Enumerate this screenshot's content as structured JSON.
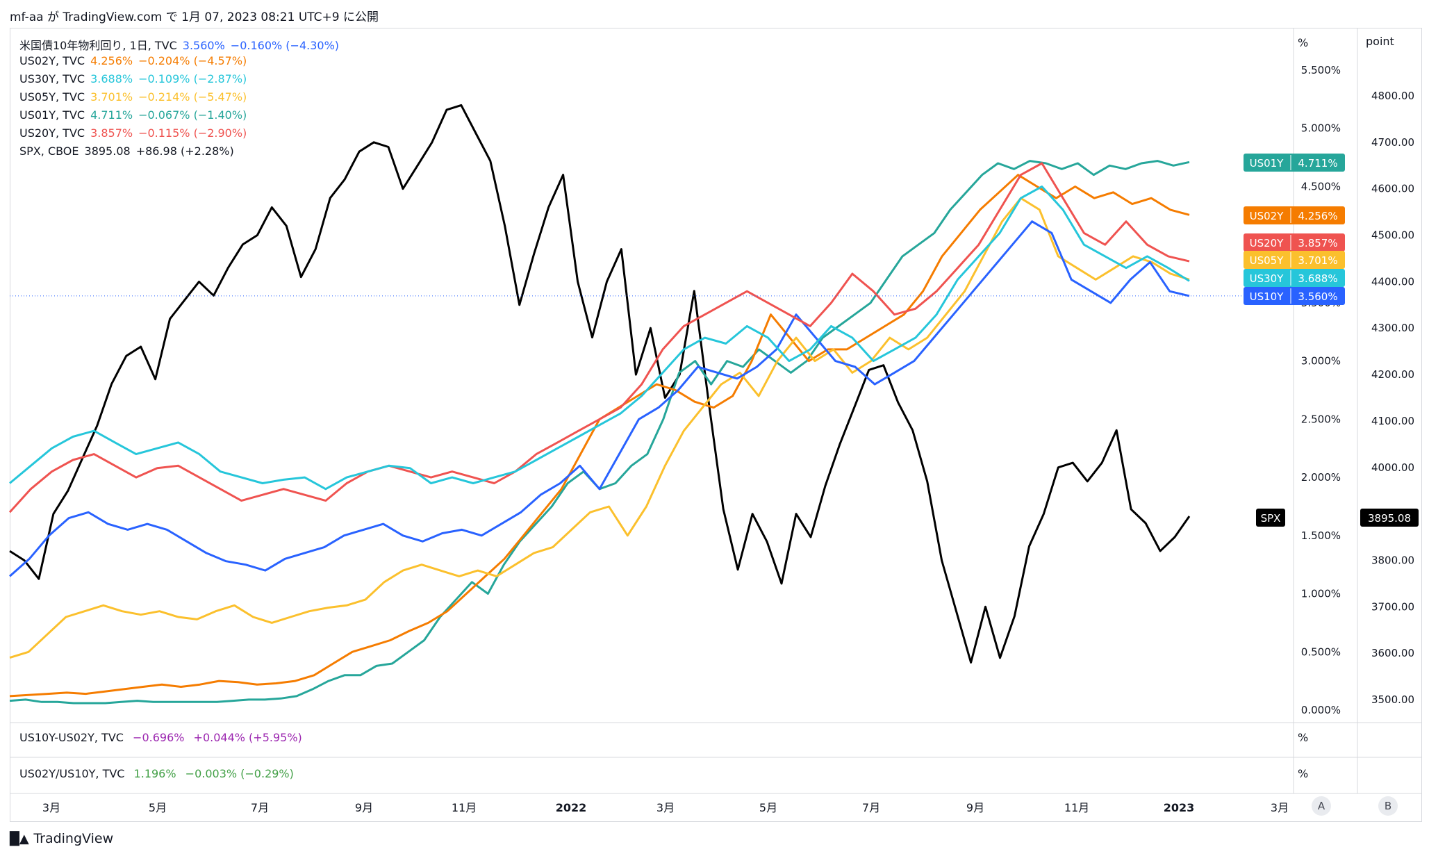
{
  "header": {
    "author": "mf-aa",
    "text_ga": "が",
    "site": "TradingView.com",
    "text_de": "で",
    "datetime": "1月 07, 2023 08:21 UTC+9",
    "text_ni": "に公開"
  },
  "legend": [
    {
      "symbol": "米国債10年物利回り, 1日, TVC",
      "value": "3.560%",
      "change": "−0.160% (−4.30%)",
      "color": "#2962ff"
    },
    {
      "symbol": "US02Y, TVC",
      "value": "4.256%",
      "change": "−0.204% (−4.57%)",
      "color": "#f57c00"
    },
    {
      "symbol": "US30Y, TVC",
      "value": "3.688%",
      "change": "−0.109% (−2.87%)",
      "color": "#26c6da"
    },
    {
      "symbol": "US05Y, TVC",
      "value": "3.701%",
      "change": "−0.214% (−5.47%)",
      "color": "#fbc02d"
    },
    {
      "symbol": "US01Y, TVC",
      "value": "4.711%",
      "change": "−0.067% (−1.40%)",
      "color": "#26a69a"
    },
    {
      "symbol": "US20Y, TVC",
      "value": "3.857%",
      "change": "−0.115% (−2.90%)",
      "color": "#ef5350"
    },
    {
      "symbol": "SPX, CBOE",
      "value": "3895.08",
      "change": "+86.98 (+2.28%)",
      "color": "#131722"
    }
  ],
  "pane2": {
    "symbol": "US10Y-US02Y, TVC",
    "value": "−0.696%",
    "change": "+0.044% (+5.95%)",
    "color": "#9c27b0",
    "unit": "%"
  },
  "pane3": {
    "symbol": "US02Y/US10Y, TVC",
    "value": "1.196%",
    "change": "−0.003% (−0.29%)",
    "color": "#43a047",
    "unit": "%"
  },
  "axis_units": {
    "left": "%",
    "right": "point"
  },
  "buttons": {
    "a": "A",
    "b": "B"
  },
  "footer": {
    "brand": "TradingView"
  },
  "chart_data": {
    "type": "line",
    "x_ticks": [
      "3月",
      "5月",
      "7月",
      "9月",
      "11月",
      "2022",
      "3月",
      "5月",
      "7月",
      "9月",
      "11月",
      "2023",
      "3月"
    ],
    "y_left_ticks": [
      "0.000%",
      "0.500%",
      "1.000%",
      "1.500%",
      "2.000%",
      "2.500%",
      "3.000%",
      "3.500%",
      "4.000%",
      "4.500%",
      "5.000%",
      "5.500%"
    ],
    "y_right_ticks": [
      "3500.00",
      "3600.00",
      "3700.00",
      "3800.00",
      "3900.00",
      "4000.00",
      "4100.00",
      "4200.00",
      "4300.00",
      "4400.00",
      "4500.00",
      "4600.00",
      "4700.00",
      "4800.00"
    ],
    "y_left_range": [
      0,
      5.5
    ],
    "y_right_range": [
      3500,
      4800
    ],
    "series": [
      {
        "name": "SPX",
        "color": "#000000",
        "axis": "right",
        "values": [
          3820,
          3800,
          3760,
          3900,
          3950,
          4020,
          4090,
          4180,
          4240,
          4260,
          4190,
          4320,
          4360,
          4400,
          4370,
          4430,
          4480,
          4500,
          4560,
          4520,
          4410,
          4470,
          4580,
          4620,
          4680,
          4700,
          4690,
          4600,
          4650,
          4700,
          4770,
          4780,
          4720,
          4660,
          4520,
          4350,
          4460,
          4560,
          4630,
          4400,
          4280,
          4400,
          4470,
          4200,
          4300,
          4150,
          4200,
          4380,
          4140,
          3910,
          3780,
          3900,
          3840,
          3750,
          3900,
          3850,
          3960,
          4050,
          4130,
          4210,
          4220,
          4140,
          4080,
          3970,
          3800,
          3690,
          3580,
          3700,
          3590,
          3680,
          3830,
          3900,
          4000,
          4010,
          3970,
          4010,
          4080,
          3910,
          3880,
          3820,
          3850,
          3895
        ]
      },
      {
        "name": "US01Y",
        "color": "#26a69a",
        "axis": "left",
        "values": [
          0.08,
          0.09,
          0.07,
          0.07,
          0.06,
          0.06,
          0.06,
          0.07,
          0.08,
          0.07,
          0.07,
          0.07,
          0.07,
          0.07,
          0.08,
          0.09,
          0.09,
          0.1,
          0.12,
          0.18,
          0.25,
          0.3,
          0.3,
          0.38,
          0.4,
          0.5,
          0.6,
          0.8,
          0.95,
          1.1,
          1.0,
          1.25,
          1.45,
          1.6,
          1.75,
          1.95,
          2.05,
          1.9,
          1.95,
          2.1,
          2.2,
          2.5,
          2.9,
          3.0,
          2.8,
          3.0,
          2.95,
          3.1,
          3.0,
          2.9,
          3.0,
          3.2,
          3.3,
          3.4,
          3.5,
          3.7,
          3.9,
          4.0,
          4.1,
          4.3,
          4.45,
          4.6,
          4.7,
          4.65,
          4.72,
          4.7,
          4.65,
          4.7,
          4.6,
          4.68,
          4.65,
          4.7,
          4.72,
          4.68,
          4.71
        ]
      },
      {
        "name": "US02Y",
        "color": "#f57c00",
        "axis": "left",
        "values": [
          0.12,
          0.13,
          0.14,
          0.15,
          0.14,
          0.16,
          0.18,
          0.2,
          0.22,
          0.2,
          0.22,
          0.25,
          0.24,
          0.22,
          0.23,
          0.25,
          0.3,
          0.4,
          0.5,
          0.55,
          0.6,
          0.68,
          0.75,
          0.85,
          1.0,
          1.15,
          1.3,
          1.5,
          1.7,
          1.9,
          2.2,
          2.5,
          2.6,
          2.7,
          2.8,
          2.75,
          2.65,
          2.6,
          2.7,
          3.0,
          3.4,
          3.2,
          3.0,
          3.1,
          3.1,
          3.2,
          3.3,
          3.4,
          3.6,
          3.9,
          4.1,
          4.3,
          4.45,
          4.6,
          4.5,
          4.4,
          4.5,
          4.4,
          4.45,
          4.35,
          4.4,
          4.3,
          4.256
        ]
      },
      {
        "name": "US05Y",
        "color": "#fbc02d",
        "axis": "left",
        "values": [
          0.45,
          0.5,
          0.65,
          0.8,
          0.85,
          0.9,
          0.85,
          0.82,
          0.85,
          0.8,
          0.78,
          0.85,
          0.9,
          0.8,
          0.75,
          0.8,
          0.85,
          0.88,
          0.9,
          0.95,
          1.1,
          1.2,
          1.25,
          1.2,
          1.15,
          1.2,
          1.15,
          1.25,
          1.35,
          1.4,
          1.55,
          1.7,
          1.75,
          1.5,
          1.75,
          2.1,
          2.4,
          2.6,
          2.8,
          2.9,
          2.7,
          3.0,
          3.2,
          3.0,
          3.1,
          2.9,
          3.0,
          3.2,
          3.1,
          3.2,
          3.4,
          3.6,
          3.9,
          4.2,
          4.4,
          4.3,
          3.9,
          3.8,
          3.7,
          3.8,
          3.9,
          3.85,
          3.75,
          3.701
        ]
      },
      {
        "name": "US10Y",
        "color": "#2962ff",
        "axis": "left",
        "values": [
          1.15,
          1.3,
          1.5,
          1.65,
          1.7,
          1.6,
          1.55,
          1.6,
          1.55,
          1.45,
          1.35,
          1.28,
          1.25,
          1.2,
          1.3,
          1.35,
          1.4,
          1.5,
          1.55,
          1.6,
          1.5,
          1.45,
          1.52,
          1.55,
          1.5,
          1.6,
          1.7,
          1.85,
          1.95,
          2.1,
          1.9,
          2.2,
          2.5,
          2.6,
          2.75,
          2.95,
          2.9,
          2.85,
          2.95,
          3.1,
          3.4,
          3.2,
          3.0,
          2.95,
          2.8,
          2.9,
          3.0,
          3.2,
          3.4,
          3.6,
          3.8,
          4.0,
          4.2,
          4.1,
          3.7,
          3.6,
          3.5,
          3.7,
          3.85,
          3.6,
          3.56
        ]
      },
      {
        "name": "US20Y",
        "color": "#ef5350",
        "axis": "left",
        "values": [
          1.7,
          1.9,
          2.05,
          2.15,
          2.2,
          2.1,
          2.0,
          2.08,
          2.1,
          2.0,
          1.9,
          1.8,
          1.85,
          1.9,
          1.85,
          1.8,
          1.95,
          2.05,
          2.1,
          2.05,
          2.0,
          2.05,
          2.0,
          1.95,
          2.05,
          2.2,
          2.3,
          2.4,
          2.5,
          2.6,
          2.8,
          3.1,
          3.3,
          3.4,
          3.5,
          3.6,
          3.5,
          3.4,
          3.3,
          3.5,
          3.75,
          3.6,
          3.4,
          3.45,
          3.6,
          3.8,
          4.0,
          4.3,
          4.6,
          4.7,
          4.4,
          4.1,
          4.0,
          4.2,
          4.0,
          3.9,
          3.857
        ]
      },
      {
        "name": "US30Y",
        "color": "#26c6da",
        "axis": "left",
        "values": [
          1.95,
          2.1,
          2.25,
          2.35,
          2.4,
          2.3,
          2.2,
          2.25,
          2.3,
          2.2,
          2.05,
          2.0,
          1.95,
          1.98,
          2.0,
          1.9,
          2.0,
          2.05,
          2.1,
          2.08,
          1.95,
          2.0,
          1.95,
          2.0,
          2.05,
          2.15,
          2.25,
          2.35,
          2.45,
          2.55,
          2.7,
          2.9,
          3.1,
          3.2,
          3.15,
          3.3,
          3.2,
          3.0,
          3.1,
          3.3,
          3.2,
          3.0,
          3.1,
          3.2,
          3.4,
          3.7,
          3.9,
          4.1,
          4.4,
          4.5,
          4.3,
          4.0,
          3.9,
          3.8,
          3.9,
          3.8,
          3.688
        ]
      }
    ],
    "last_value_labels": [
      {
        "name": "US01Y",
        "value": "4.711%",
        "color": "#26a69a"
      },
      {
        "name": "US02Y",
        "value": "4.256%",
        "color": "#f57c00"
      },
      {
        "name": "US20Y",
        "value": "3.857%",
        "color": "#ef5350"
      },
      {
        "name": "US05Y",
        "value": "3.701%",
        "color": "#fbc02d"
      },
      {
        "name": "US30Y",
        "value": "3.688%",
        "color": "#26c6da"
      },
      {
        "name": "US10Y",
        "value": "3.560%",
        "color": "#2962ff"
      },
      {
        "name": "SPX",
        "value": "3895.08",
        "color": "#000000"
      }
    ],
    "legend_position": "top-left",
    "grid": false
  }
}
